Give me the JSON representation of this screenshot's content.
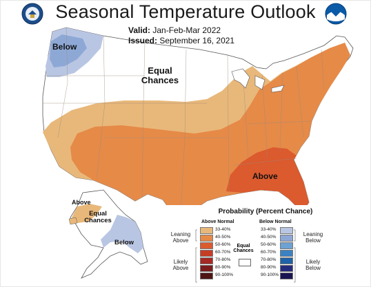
{
  "title": "Seasonal Temperature Outlook",
  "valid": {
    "label": "Valid:",
    "value": "Jan-Feb-Mar 2022"
  },
  "issued": {
    "label": "Issued:",
    "value": "September 16, 2021"
  },
  "logos": {
    "left": "commerce-seal-icon",
    "right": "noaa-logo-icon"
  },
  "map_labels": {
    "below_nw": "Below",
    "equal_chances": [
      "Equal",
      "Chances"
    ],
    "above_se": "Above",
    "alaska_above": "Above",
    "alaska_equal": [
      "Equal",
      "Chances"
    ],
    "alaska_below": "Below"
  },
  "colors": {
    "background": "#ffffff",
    "above_33_40": "#e8b87a",
    "above_40_50": "#e68a48",
    "above_50_60": "#db5a2e",
    "above_60_70": "#c63d26",
    "above_70_80": "#a42a23",
    "above_80_90": "#7a1d1c",
    "above_90_100": "#4f1414",
    "below_33_40": "#b9c6e3",
    "below_40_50": "#8ea8d6",
    "below_50_60": "#6da2d4",
    "below_60_70": "#3b82c2",
    "below_70_80": "#1f62a8",
    "below_80_90": "#242b7d",
    "below_90_100": "#1b1452",
    "state_lines": "#8a7a6a"
  },
  "legend": {
    "title": "Probability (Percent Chance)",
    "above_header": "Above Normal",
    "below_header": "Below Normal",
    "equal_label": [
      "Equal",
      "Chances"
    ],
    "leaning_above": [
      "Leaning",
      "Above"
    ],
    "likely_above": [
      "Likely",
      "Above"
    ],
    "leaning_below": [
      "Leaning",
      "Below"
    ],
    "likely_below": [
      "Likely",
      "Below"
    ],
    "ranges": [
      "33-40%",
      "40-50%",
      "50-60%",
      "60-70%",
      "70-80%",
      "80-90%",
      "90-100%"
    ],
    "above_colors": [
      "#e8b87a",
      "#e68a48",
      "#db5a2e",
      "#c63d26",
      "#a42a23",
      "#7a1d1c",
      "#4f1414"
    ],
    "below_colors": [
      "#b9c6e3",
      "#8ea8d6",
      "#6da2d4",
      "#3b82c2",
      "#1f62a8",
      "#242b7d",
      "#1b1452"
    ]
  }
}
